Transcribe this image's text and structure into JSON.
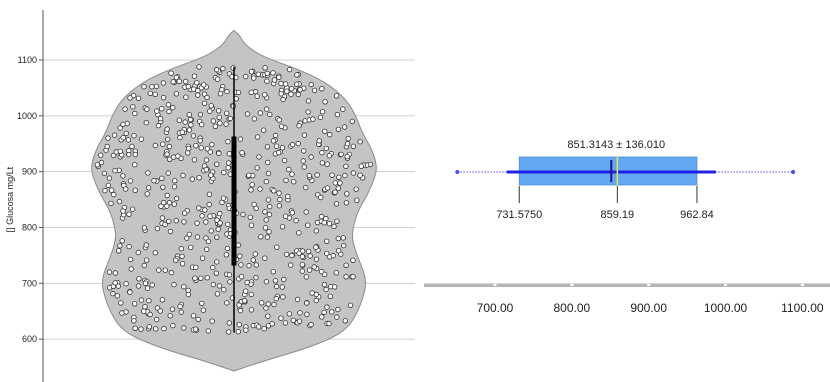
{
  "chart_data": [
    {
      "type": "violin",
      "ylabel": "[] Glucosa mg/Lt",
      "ylim": [
        540,
        1155
      ],
      "y_ticks": [
        600,
        700,
        800,
        900,
        1000,
        1100
      ],
      "y_tick_labels": [
        "600",
        "700",
        "800",
        "900",
        "1000",
        "1100"
      ],
      "grid": true,
      "fill_color": "#c4c4c4",
      "outline_color": "#8a8a8a",
      "point_color": "#ffffff",
      "point_edge_color": "#333333",
      "points_count": 700,
      "points_range": [
        612,
        1088
      ],
      "density_profile": [
        {
          "y": 543,
          "half_width": 0
        },
        {
          "y": 560,
          "half_width": 28
        },
        {
          "y": 580,
          "half_width": 66
        },
        {
          "y": 600,
          "half_width": 96
        },
        {
          "y": 620,
          "half_width": 114
        },
        {
          "y": 650,
          "half_width": 124
        },
        {
          "y": 680,
          "half_width": 130
        },
        {
          "y": 700,
          "half_width": 132
        },
        {
          "y": 720,
          "half_width": 130
        },
        {
          "y": 750,
          "half_width": 123
        },
        {
          "y": 780,
          "half_width": 118
        },
        {
          "y": 800,
          "half_width": 119
        },
        {
          "y": 830,
          "half_width": 124
        },
        {
          "y": 860,
          "half_width": 134
        },
        {
          "y": 890,
          "half_width": 141
        },
        {
          "y": 910,
          "half_width": 143
        },
        {
          "y": 940,
          "half_width": 138
        },
        {
          "y": 970,
          "half_width": 128
        },
        {
          "y": 1000,
          "half_width": 122
        },
        {
          "y": 1030,
          "half_width": 112
        },
        {
          "y": 1060,
          "half_width": 92
        },
        {
          "y": 1085,
          "half_width": 62
        },
        {
          "y": 1105,
          "half_width": 30
        },
        {
          "y": 1125,
          "half_width": 12
        },
        {
          "y": 1145,
          "half_width": 5
        },
        {
          "y": 1153,
          "half_width": 0
        }
      ],
      "whisker_range": [
        612,
        1088
      ],
      "thick_bar_range": [
        732,
        963
      ]
    },
    {
      "type": "box",
      "xlim": [
        650,
        1145
      ],
      "x_ticks": [
        700,
        800,
        900,
        1000,
        1100
      ],
      "x_tick_labels": [
        "700.00",
        "800.00",
        "900.00",
        "1000.00",
        "1100.00"
      ],
      "q1": 731.575,
      "median": 859.19,
      "q3": 962.84,
      "mean": 851.3143,
      "sd": 136.01,
      "whisker_low": 651,
      "whisker_high": 1088,
      "mean_sd_label": "851.3143 ± 136.010",
      "q1_label": "731.5750",
      "median_label": "859.19",
      "q3_label": "962.84",
      "box_color": "#64a8f4",
      "line_color": "#1f1fe6",
      "median_color": "#e6e64b",
      "whisker_color": "#4a4aff"
    }
  ]
}
